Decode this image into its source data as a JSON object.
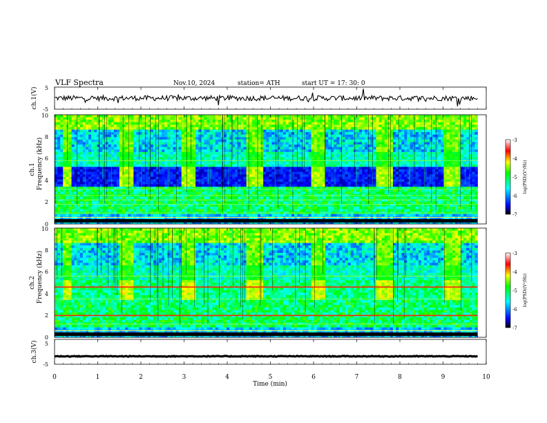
{
  "header": {
    "title": "VLF  Spectra",
    "date": "Nov.10, 2024",
    "station": "station= ATH",
    "start": "start  UT  =    17: 30: 0"
  },
  "colors": {
    "spectrum": [
      "#000000",
      "#0000ff",
      "#00ffff",
      "#00ff00",
      "#ffff00",
      "#ff0000",
      "#ffffff"
    ],
    "trace": "#000000",
    "axis": "#000000"
  },
  "chart_data": {
    "type": "heatmap",
    "xlabel": "Time  (min)",
    "xlim": [
      0,
      10
    ],
    "xticks": [
      "0",
      "1",
      "2",
      "3",
      "4",
      "5",
      "6",
      "7",
      "8",
      "9",
      "10"
    ],
    "panels": [
      {
        "id": "ch1_waveform",
        "type": "line",
        "ylabel": "ch.1(V)",
        "ylim": [
          -5,
          5
        ],
        "yticks": [
          "5",
          "-5"
        ],
        "mean_level": 0,
        "data_end_min": 9.8
      },
      {
        "id": "ch1_spectrogram",
        "type": "heatmap",
        "ylabel_channel": "ch.1",
        "ylabel": "Frequency  (kHz)",
        "ylim": [
          0,
          10
        ],
        "yticks": [
          "0",
          "2",
          "4",
          "6",
          "8",
          "10"
        ],
        "colorbar": {
          "label": "log(PSD)(V²/Hz)",
          "range": [
            -7,
            -3
          ],
          "ticks": [
            "-3",
            "-4",
            "-5",
            "-6",
            "-7"
          ]
        },
        "transmitter_gaps_min": [
          [
            0.15,
            0.37
          ],
          [
            1.45,
            1.82
          ],
          [
            2.9,
            3.25
          ],
          [
            4.42,
            4.78
          ],
          [
            5.9,
            6.25
          ],
          [
            7.42,
            7.8
          ],
          [
            8.98,
            9.35
          ]
        ],
        "dark_band_khz": [
          3.5,
          5.0
        ],
        "data_end_min": 9.8
      },
      {
        "id": "ch2_spectrogram",
        "type": "heatmap",
        "ylabel_channel": "ch.2",
        "ylabel": "Frequency  (kHz)",
        "ylim": [
          0,
          10
        ],
        "yticks": [
          "0",
          "2",
          "4",
          "6",
          "8",
          "10"
        ],
        "colorbar": {
          "label": "log(PSD)(V²/Hz)",
          "range": [
            -7,
            -3
          ],
          "ticks": [
            "-3",
            "-4",
            "-5",
            "-6",
            "-7"
          ]
        },
        "transmitter_gaps_min": [
          [
            0.15,
            0.37
          ],
          [
            1.45,
            1.82
          ],
          [
            2.9,
            3.25
          ],
          [
            4.42,
            4.78
          ],
          [
            5.9,
            6.25
          ],
          [
            7.42,
            7.8
          ],
          [
            8.98,
            9.35
          ]
        ],
        "red_lines_khz": [
          2.0,
          4.6
        ],
        "data_end_min": 9.8
      },
      {
        "id": "ch3_waveform",
        "type": "line",
        "ylabel": "ch.3(V)",
        "ylim": [
          -5,
          5
        ],
        "yticks": [
          "5",
          "-5"
        ],
        "mean_level": -1.8,
        "data_end_min": 9.8
      }
    ]
  }
}
